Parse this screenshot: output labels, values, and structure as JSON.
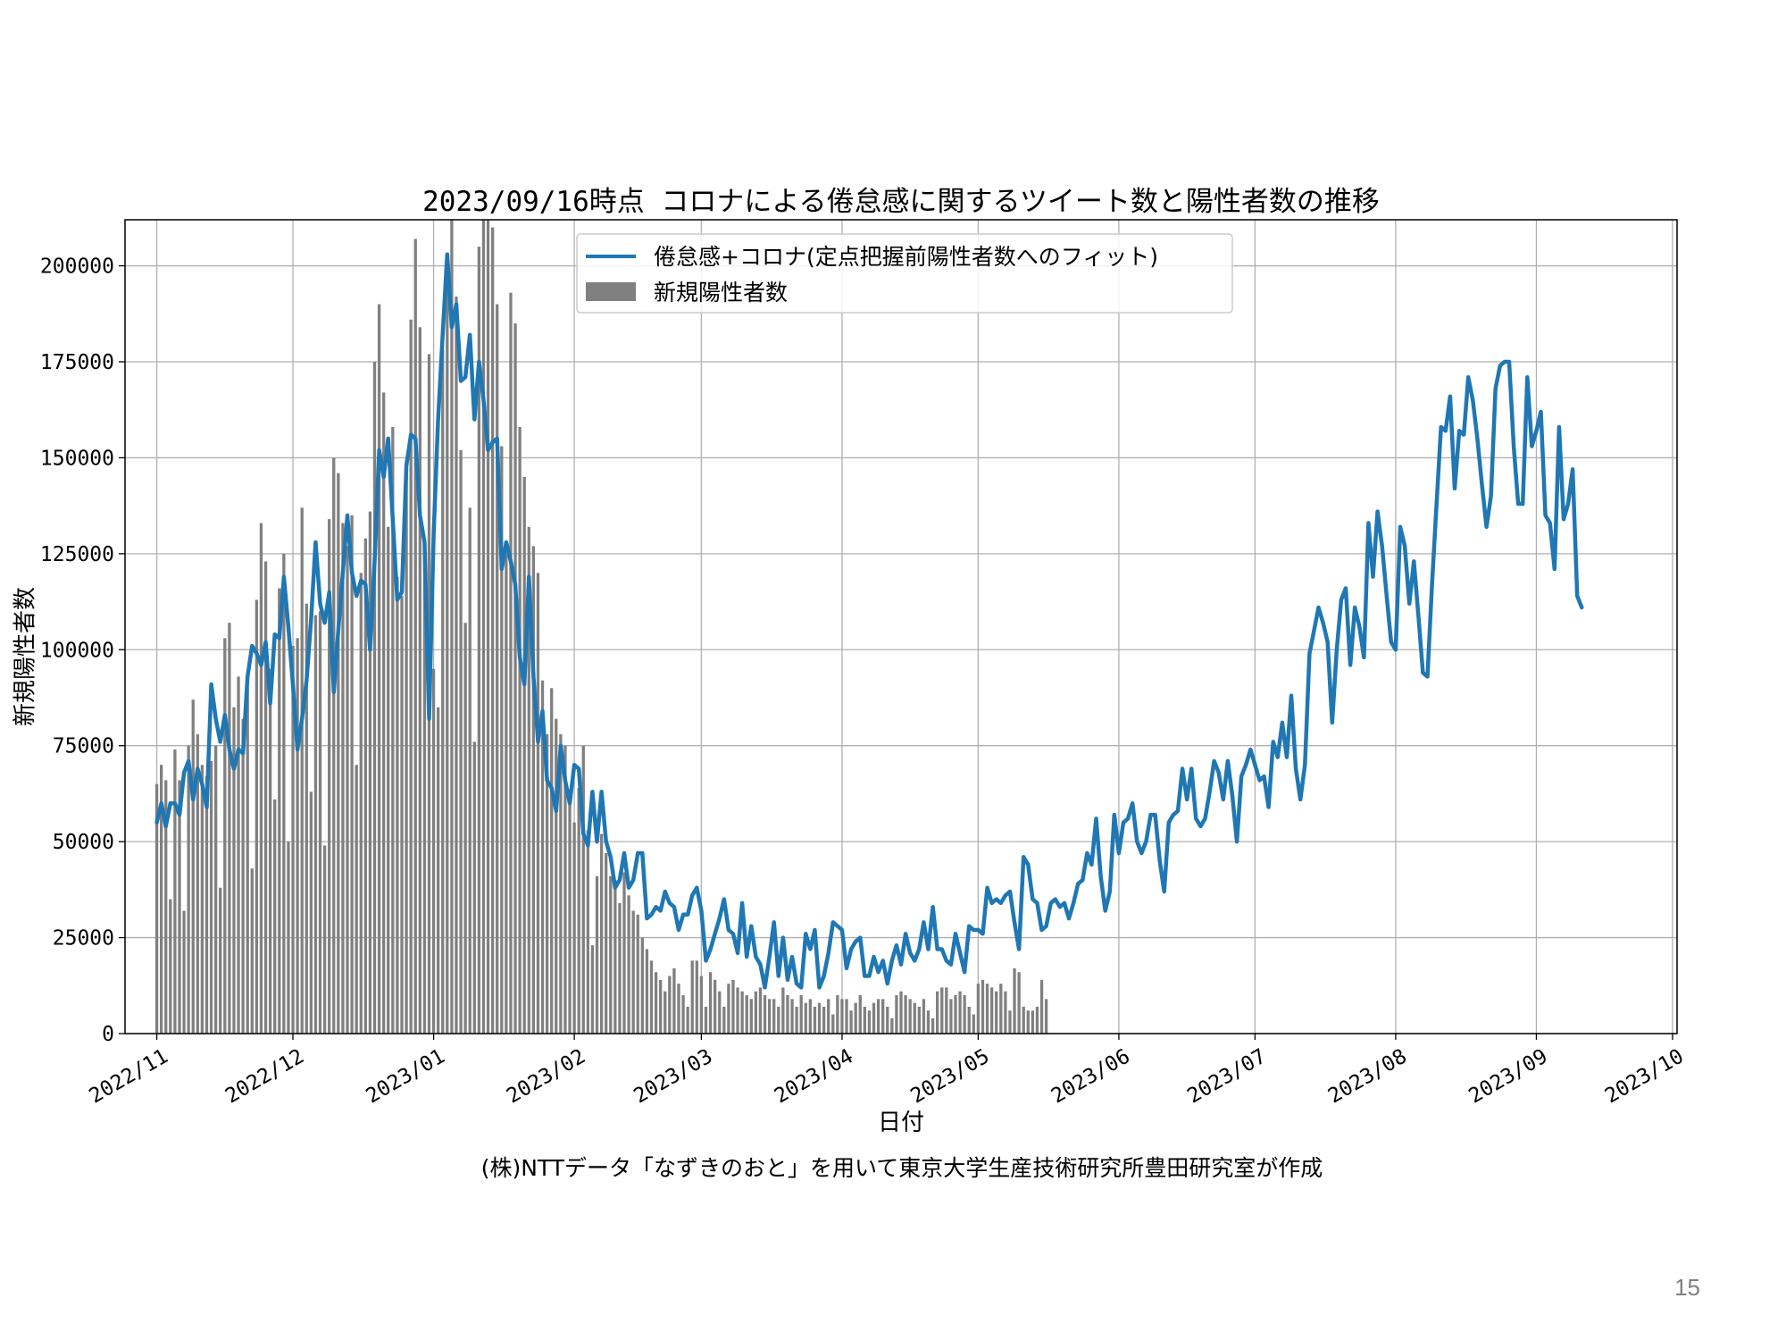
{
  "slide": {
    "page_number": "15",
    "source_note": "(株)NTTデータ「なずきのおと」を用いて東京大学生産技術研究所豊田研究室が作成"
  },
  "chart_data": {
    "type": "bar+line",
    "title": "2023/09/16時点 コロナによる倦怠感に関するツイート数と陽性者数の推移",
    "xlabel": "日付",
    "ylabel": "新規陽性者数",
    "ylim": [
      0,
      212000
    ],
    "xlim": [
      "2022-10-25",
      "2023-10-02"
    ],
    "yticks": [
      0,
      25000,
      50000,
      75000,
      100000,
      125000,
      150000,
      175000,
      200000
    ],
    "xticks": [
      {
        "date": "2022-11-01",
        "label": "2022/11"
      },
      {
        "date": "2022-12-01",
        "label": "2022/12"
      },
      {
        "date": "2023-01-01",
        "label": "2023/01"
      },
      {
        "date": "2023-02-01",
        "label": "2023/02"
      },
      {
        "date": "2023-03-01",
        "label": "2023/03"
      },
      {
        "date": "2023-04-01",
        "label": "2023/04"
      },
      {
        "date": "2023-05-01",
        "label": "2023/05"
      },
      {
        "date": "2023-06-01",
        "label": "2023/06"
      },
      {
        "date": "2023-07-01",
        "label": "2023/07"
      },
      {
        "date": "2023-08-01",
        "label": "2023/08"
      },
      {
        "date": "2023-09-01",
        "label": "2023/09"
      },
      {
        "date": "2023-10-01",
        "label": "2023/10"
      }
    ],
    "grid": true,
    "legend_position": "top-center",
    "colors": {
      "line": "#1f77b4",
      "bars": "#808080"
    },
    "line_series": {
      "name": "倦怠感+コロナ(定点把握前陽性者数へのフィット)",
      "start_date": "2022-11-01",
      "values": [
        55000,
        60000,
        54000,
        60000,
        60000,
        57000,
        68000,
        71000,
        61000,
        69000,
        65000,
        59000,
        91000,
        82000,
        76000,
        83000,
        74000,
        69000,
        74000,
        73000,
        93000,
        101000,
        99000,
        96000,
        102000,
        86000,
        104000,
        103000,
        119000,
        106000,
        91000,
        74000,
        82000,
        92000,
        108000,
        128000,
        112000,
        107000,
        115000,
        89000,
        105000,
        120000,
        135000,
        120000,
        114000,
        118000,
        117000,
        100000,
        123000,
        152000,
        145000,
        155000,
        134000,
        113000,
        115000,
        148000,
        156000,
        155000,
        135000,
        128000,
        82000,
        130000,
        160000,
        182000,
        203000,
        184000,
        190000,
        170000,
        171000,
        182000,
        160000,
        175000,
        165000,
        152000,
        154000,
        155000,
        121000,
        128000,
        123000,
        117000,
        98000,
        91000,
        119000,
        93000,
        76000,
        84000,
        66000,
        64000,
        58000,
        75000,
        66000,
        60000,
        70000,
        69000,
        52000,
        49000,
        63000,
        50000,
        63000,
        50000,
        46000,
        38000,
        40000,
        47000,
        38000,
        40000,
        47000,
        47000,
        30000,
        31000,
        33000,
        32000,
        37000,
        34000,
        33000,
        27000,
        31000,
        31000,
        36000,
        38000,
        32000,
        19000,
        22000,
        26000,
        30000,
        35000,
        27000,
        26000,
        21000,
        34000,
        20000,
        28000,
        20000,
        18000,
        12000,
        20000,
        29000,
        15000,
        25000,
        14000,
        20000,
        13000,
        12000,
        26000,
        22000,
        27000,
        12000,
        15000,
        21000,
        29000,
        28000,
        27000,
        17000,
        22000,
        24000,
        25000,
        15000,
        15000,
        20000,
        16000,
        19000,
        13000,
        19000,
        23000,
        18000,
        26000,
        21000,
        19000,
        22000,
        29000,
        22000,
        33000,
        22000,
        22000,
        19000,
        18000,
        26000,
        21000,
        16000,
        28000,
        27000,
        27000,
        26000,
        38000,
        34000,
        35000,
        34000,
        36000,
        37000,
        29000,
        22000,
        46000,
        44000,
        35000,
        34000,
        27000,
        28000,
        34000,
        35000,
        33000,
        34000,
        30000,
        34000,
        39000,
        40000,
        47000,
        44000,
        56000,
        41000,
        32000,
        37000,
        57000,
        47000,
        55000,
        56000,
        60000,
        50000,
        47000,
        50000,
        57000,
        57000,
        45000,
        37000,
        55000,
        57000,
        58000,
        69000,
        61000,
        69000,
        56000,
        54000,
        56000,
        63000,
        71000,
        68000,
        61000,
        71000,
        62000,
        50000,
        67000,
        70000,
        74000,
        70000,
        66000,
        67000,
        59000,
        76000,
        72000,
        81000,
        72000,
        88000,
        69000,
        61000,
        70000,
        99000,
        105000,
        111000,
        107000,
        102000,
        81000,
        100000,
        113000,
        116000,
        96000,
        111000,
        106000,
        98000,
        133000,
        119000,
        136000,
        127000,
        114000,
        102000,
        100000,
        132000,
        127000,
        112000,
        123000,
        109000,
        94000,
        93000,
        117000,
        138000,
        158000,
        157000,
        166000,
        142000,
        157000,
        156000,
        171000,
        165000,
        155000,
        143000,
        132000,
        140000,
        168000,
        174000,
        175000,
        175000,
        153000,
        138000,
        138000,
        171000,
        153000,
        157000,
        162000,
        135000,
        133000,
        121000,
        158000,
        134000,
        138000,
        147000,
        114000,
        111000
      ]
    },
    "bar_series": {
      "name": "新規陽性者数",
      "start_date": "2022-11-01",
      "values": [
        65000,
        70000,
        66000,
        35000,
        74000,
        66000,
        32000,
        75000,
        87000,
        78000,
        70000,
        67000,
        71000,
        75000,
        38000,
        103000,
        107000,
        85000,
        93000,
        82000,
        90000,
        43000,
        113000,
        133000,
        123000,
        95000,
        61000,
        116000,
        125000,
        50000,
        101000,
        103000,
        137000,
        112000,
        63000,
        109000,
        110000,
        49000,
        134000,
        150000,
        146000,
        133000,
        127000,
        135000,
        70000,
        120000,
        129000,
        136000,
        175000,
        190000,
        167000,
        132000,
        158000,
        119000,
        114000,
        145000,
        186000,
        207000,
        184000,
        128000,
        177000,
        95000,
        85000,
        178000,
        203000,
        214000,
        192000,
        152000,
        107000,
        137000,
        76000,
        205000,
        240000,
        222000,
        210000,
        190000,
        153000,
        125000,
        193000,
        185000,
        158000,
        145000,
        132000,
        127000,
        120000,
        92000,
        78000,
        90000,
        82000,
        78000,
        75000,
        60000,
        55000,
        64000,
        75000,
        53000,
        23000,
        41000,
        52000,
        47000,
        41000,
        40000,
        34000,
        42000,
        36000,
        32000,
        31000,
        25000,
        22000,
        19000,
        16000,
        14000,
        11000,
        15000,
        17000,
        13000,
        10000,
        7000,
        19000,
        19000,
        15000,
        7000,
        16000,
        14000,
        11000,
        7000,
        13000,
        14000,
        12000,
        11000,
        10000,
        9000,
        11000,
        12000,
        10000,
        9000,
        9000,
        7000,
        12000,
        10000,
        9000,
        7000,
        10000,
        8000,
        9000,
        7000,
        8000,
        7000,
        9000,
        5000,
        10000,
        9000,
        9000,
        6000,
        8000,
        10000,
        7000,
        6000,
        8000,
        9000,
        9000,
        7000,
        4000,
        10000,
        11000,
        10000,
        9000,
        8000,
        7000,
        9000,
        6000,
        4000,
        11000,
        12000,
        12000,
        9000,
        10000,
        11000,
        10000,
        7000,
        5000,
        13000,
        14000,
        13000,
        12000,
        11000,
        13000,
        11000,
        6000,
        17000,
        16000,
        7000,
        6000,
        6000,
        7000,
        14000,
        9000
      ]
    },
    "legend": [
      "倦怠感+コロナ(定点把握前陽性者数へのフィット)",
      "新規陽性者数"
    ]
  }
}
